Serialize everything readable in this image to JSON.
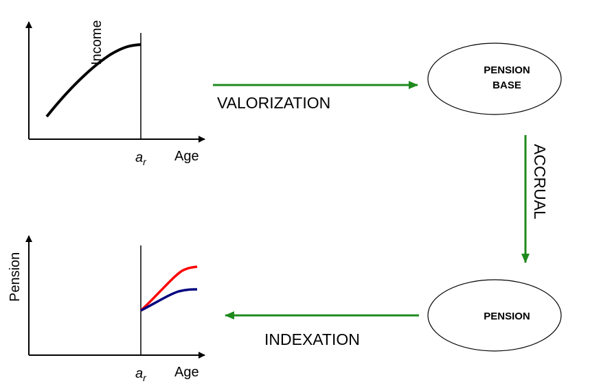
{
  "income_chart": {
    "y_label": "Income",
    "x_label": "Age",
    "marker": {
      "base": "a",
      "subscript": "r"
    }
  },
  "valorization": {
    "label": "VALORIZATION"
  },
  "pension_base": {
    "lines": [
      "PENSION",
      "BASE"
    ]
  },
  "accrual": {
    "label": "ACCRUAL"
  },
  "pension": {
    "label": "PENSION"
  },
  "indexation": {
    "label": "INDEXATION"
  },
  "pension_chart": {
    "y_label": "Pension",
    "x_label": "Age",
    "marker": {
      "base": "a",
      "subscript": "r"
    }
  }
}
